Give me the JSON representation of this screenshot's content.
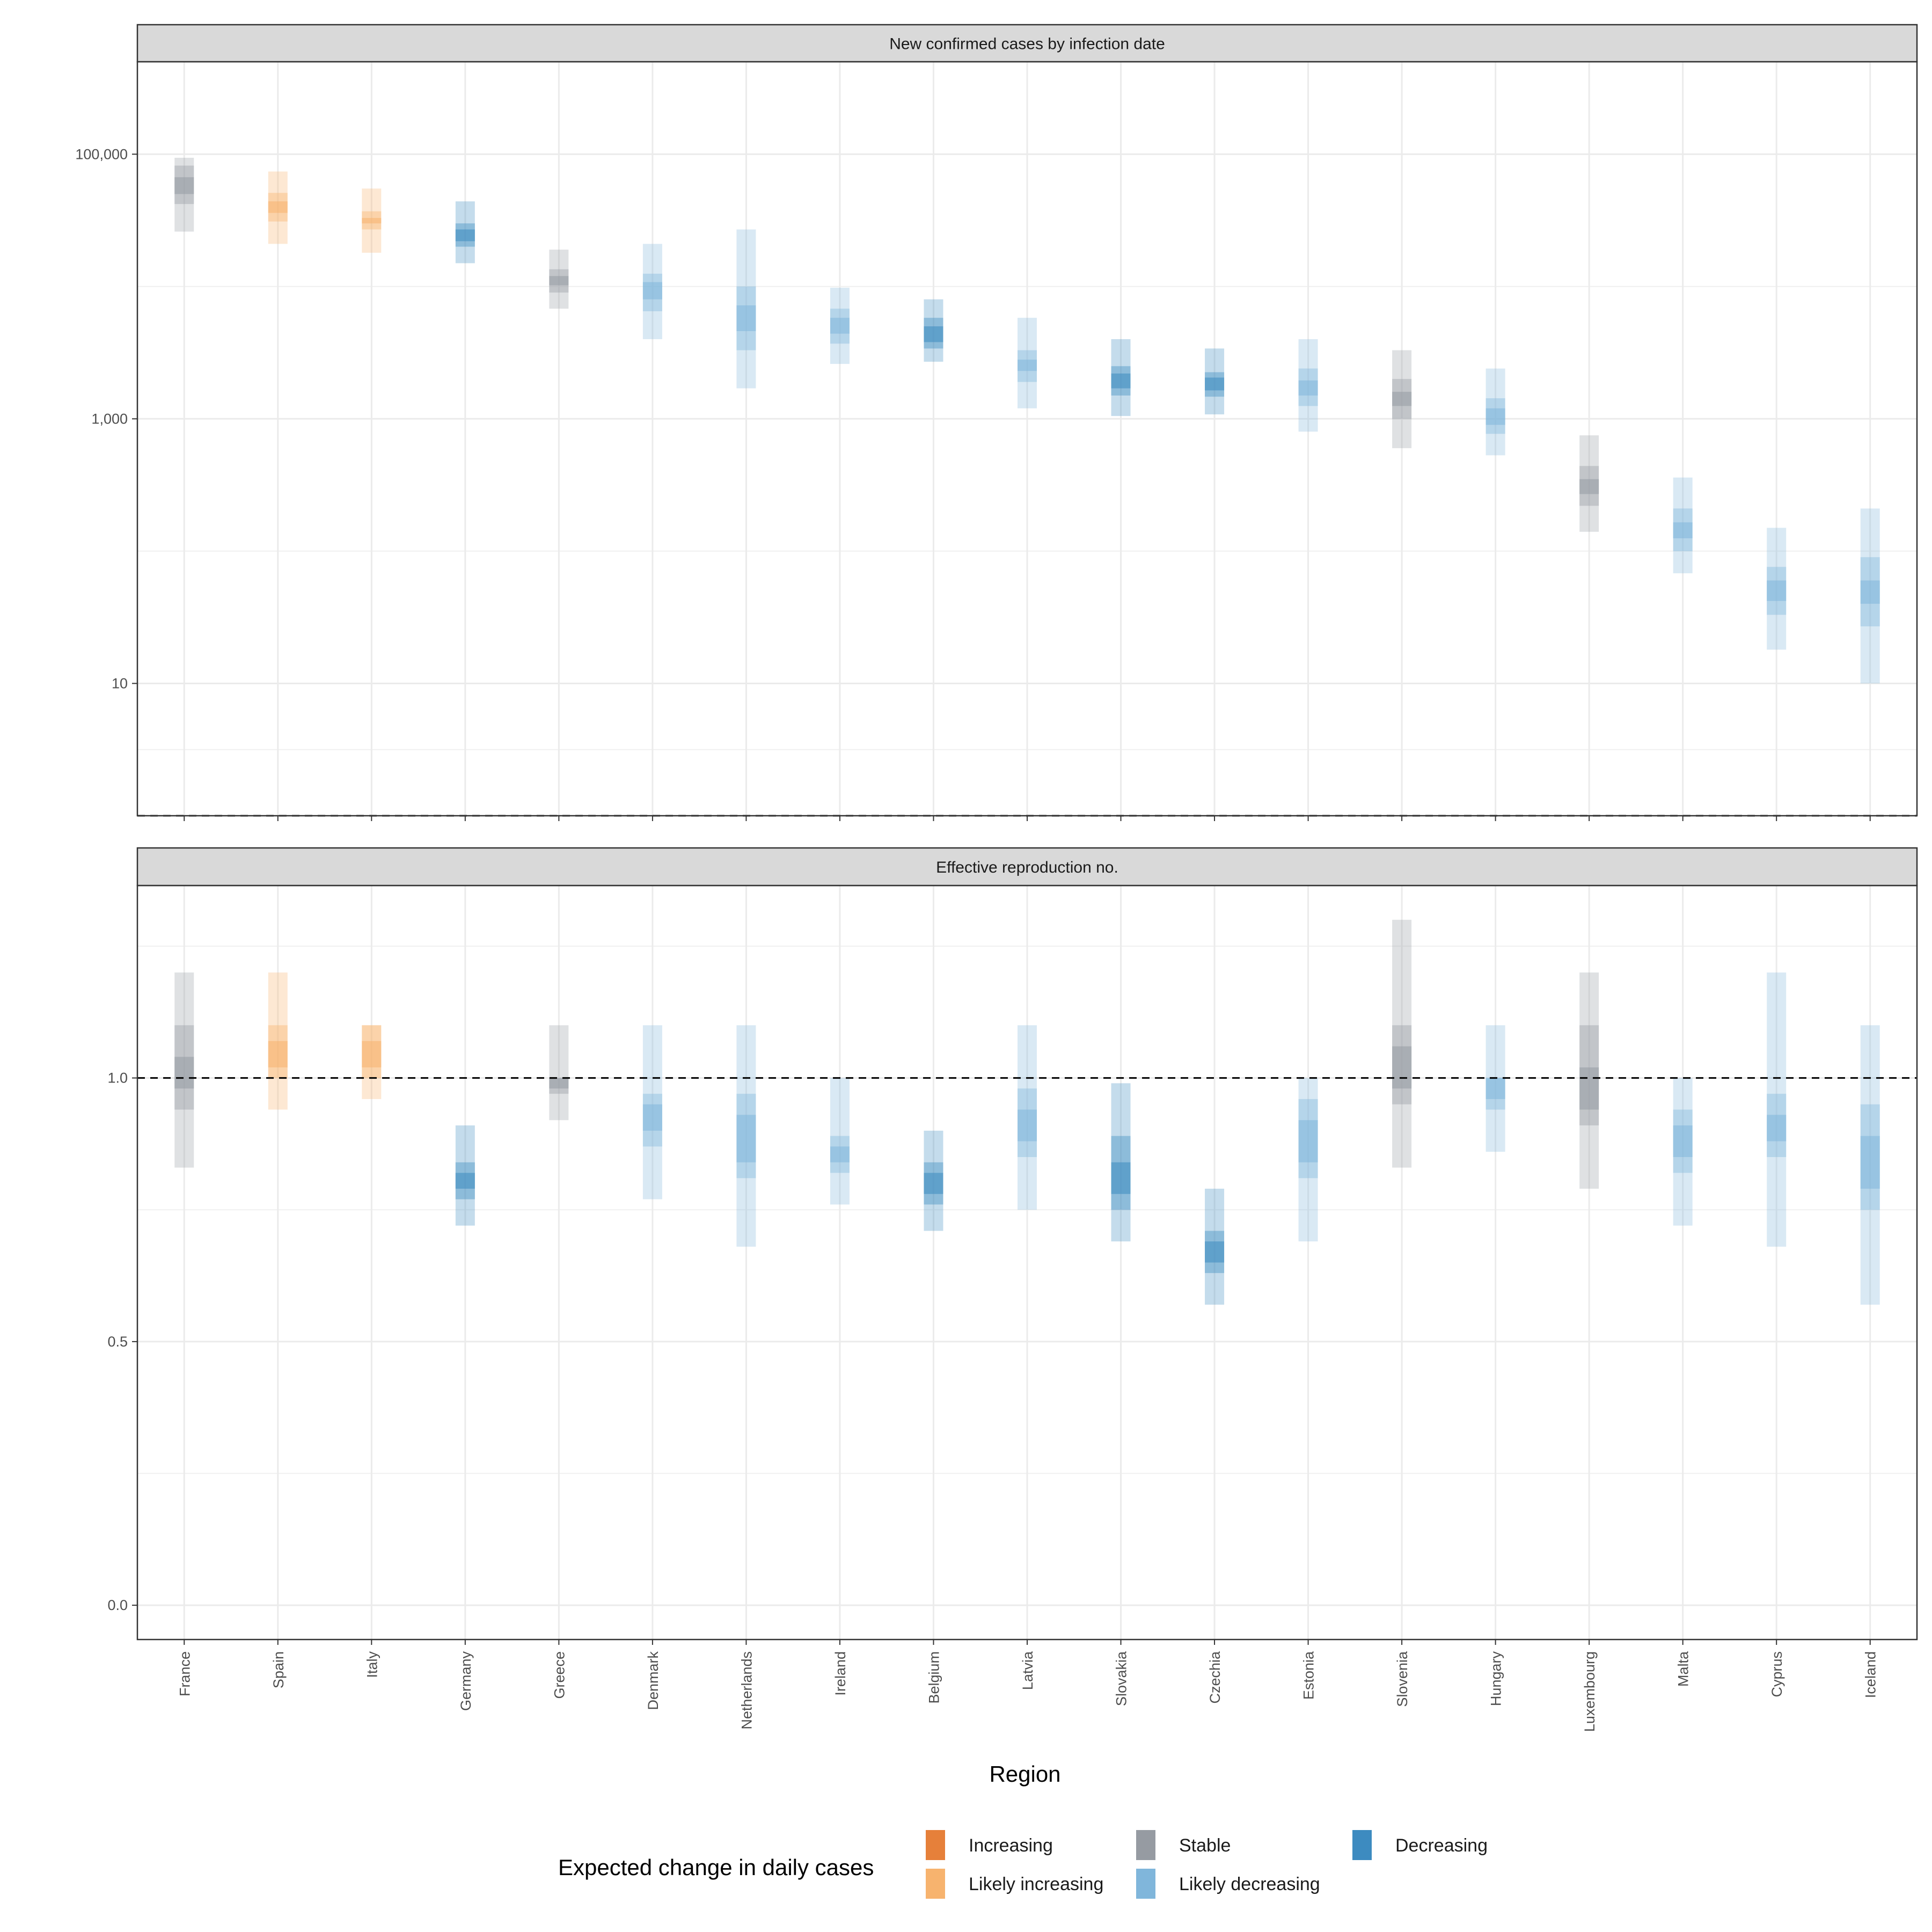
{
  "chart_data": [
    {
      "type": "interval",
      "title": "New confirmed cases by infection date",
      "y_scale": "log10",
      "ylim": [
        1,
        500000
      ],
      "y_ticks": [
        10,
        1000,
        100000
      ],
      "y_tick_labels": [
        "10",
        "1,000",
        "100,000"
      ],
      "reference_line": 1,
      "categories": [
        "France",
        "Spain",
        "Italy",
        "Germany",
        "Greece",
        "Denmark",
        "Netherlands",
        "Ireland",
        "Belgium",
        "Latvia",
        "Slovakia",
        "Czechia",
        "Estonia",
        "Slovenia",
        "Hungary",
        "Luxembourg",
        "Malta",
        "Cyprus",
        "Iceland"
      ],
      "category": [
        "Stable",
        "Likely increasing",
        "Likely increasing",
        "Decreasing",
        "Stable",
        "Likely decreasing",
        "Likely decreasing",
        "Likely decreasing",
        "Decreasing",
        "Likely decreasing",
        "Decreasing",
        "Decreasing",
        "Likely decreasing",
        "Stable",
        "Likely decreasing",
        "Stable",
        "Likely decreasing",
        "Likely decreasing",
        "Likely decreasing"
      ],
      "intervals_90": [
        [
          26000,
          94000
        ],
        [
          21000,
          74000
        ],
        [
          18000,
          55000
        ],
        [
          15000,
          44000
        ],
        [
          6800,
          19000
        ],
        [
          4000,
          21000
        ],
        [
          1700,
          27000
        ],
        [
          2600,
          9800
        ],
        [
          2700,
          8000
        ],
        [
          1200,
          5800
        ],
        [
          1050,
          4000
        ],
        [
          1080,
          3400
        ],
        [
          800,
          4000
        ],
        [
          600,
          3300
        ],
        [
          530,
          2400
        ],
        [
          140,
          750
        ],
        [
          68,
          360
        ],
        [
          18,
          150
        ],
        [
          10,
          210
        ]
      ],
      "intervals_50": [
        [
          42000,
          82000
        ],
        [
          31000,
          51000
        ],
        [
          27000,
          37000
        ],
        [
          20000,
          30000
        ],
        [
          9000,
          13500
        ],
        [
          6500,
          12500
        ],
        [
          3300,
          10000
        ],
        [
          3700,
          6800
        ],
        [
          3400,
          5800
        ],
        [
          1900,
          3300
        ],
        [
          1500,
          2500
        ],
        [
          1470,
          2250
        ],
        [
          1250,
          2400
        ],
        [
          1000,
          2000
        ],
        [
          770,
          1430
        ],
        [
          220,
          440
        ],
        [
          100,
          210
        ],
        [
          33,
          76
        ],
        [
          27,
          90
        ]
      ],
      "intervals_20": [
        [
          50000,
          67000
        ],
        [
          36000,
          44000
        ],
        [
          30000,
          33000
        ],
        [
          22000,
          27000
        ],
        [
          10200,
          12000
        ],
        [
          8000,
          10800
        ],
        [
          4600,
          7200
        ],
        [
          4400,
          5800
        ],
        [
          3800,
          5000
        ],
        [
          2300,
          2800
        ],
        [
          1700,
          2200
        ],
        [
          1640,
          2050
        ],
        [
          1500,
          1950
        ],
        [
          1250,
          1600
        ],
        [
          900,
          1200
        ],
        [
          270,
          350
        ],
        [
          125,
          165
        ],
        [
          42,
          60
        ],
        [
          40,
          60
        ]
      ]
    },
    {
      "type": "interval",
      "title": "Effective reproduction no.",
      "y_scale": "linear",
      "ylim": [
        -0.065,
        1.365
      ],
      "y_ticks": [
        0.0,
        0.5,
        1.0
      ],
      "y_tick_labels": [
        "0.0",
        "0.5",
        "1.0"
      ],
      "reference_line": 1.0,
      "categories": [
        "France",
        "Spain",
        "Italy",
        "Germany",
        "Greece",
        "Denmark",
        "Netherlands",
        "Ireland",
        "Belgium",
        "Latvia",
        "Slovakia",
        "Czechia",
        "Estonia",
        "Slovenia",
        "Hungary",
        "Luxembourg",
        "Malta",
        "Cyprus",
        "Iceland"
      ],
      "category": [
        "Stable",
        "Likely increasing",
        "Likely increasing",
        "Decreasing",
        "Stable",
        "Likely decreasing",
        "Likely decreasing",
        "Likely decreasing",
        "Decreasing",
        "Likely decreasing",
        "Decreasing",
        "Decreasing",
        "Likely decreasing",
        "Stable",
        "Likely decreasing",
        "Stable",
        "Likely decreasing",
        "Likely decreasing",
        "Likely decreasing"
      ],
      "intervals_90": [
        [
          0.83,
          1.2
        ],
        [
          0.94,
          1.2
        ],
        [
          0.96,
          1.1
        ],
        [
          0.72,
          0.91
        ],
        [
          0.92,
          1.1
        ],
        [
          0.77,
          1.1
        ],
        [
          0.68,
          1.1
        ],
        [
          0.76,
          1.0
        ],
        [
          0.71,
          0.9
        ],
        [
          0.75,
          1.1
        ],
        [
          0.69,
          0.99
        ],
        [
          0.57,
          0.79
        ],
        [
          0.69,
          1.0
        ],
        [
          0.83,
          1.3
        ],
        [
          0.86,
          1.1
        ],
        [
          0.79,
          1.2
        ],
        [
          0.72,
          1.0
        ],
        [
          0.68,
          1.2
        ],
        [
          0.57,
          1.1
        ]
      ],
      "intervals_50": [
        [
          0.94,
          1.1
        ],
        [
          1.0,
          1.1
        ],
        [
          1.0,
          1.1
        ],
        [
          0.77,
          0.84
        ],
        [
          0.97,
          1.0
        ],
        [
          0.87,
          0.97
        ],
        [
          0.81,
          0.97
        ],
        [
          0.82,
          0.89
        ],
        [
          0.76,
          0.84
        ],
        [
          0.85,
          0.98
        ],
        [
          0.75,
          0.89
        ],
        [
          0.63,
          0.71
        ],
        [
          0.81,
          0.96
        ],
        [
          0.95,
          1.1
        ],
        [
          0.94,
          1.0
        ],
        [
          0.91,
          1.1
        ],
        [
          0.82,
          0.94
        ],
        [
          0.85,
          0.97
        ],
        [
          0.75,
          0.95
        ]
      ],
      "intervals_20": [
        [
          0.98,
          1.04
        ],
        [
          1.02,
          1.07
        ],
        [
          1.02,
          1.07
        ],
        [
          0.79,
          0.82
        ],
        [
          0.98,
          1.0
        ],
        [
          0.9,
          0.95
        ],
        [
          0.84,
          0.93
        ],
        [
          0.84,
          0.87
        ],
        [
          0.78,
          0.82
        ],
        [
          0.88,
          0.94
        ],
        [
          0.78,
          0.84
        ],
        [
          0.65,
          0.69
        ],
        [
          0.84,
          0.92
        ],
        [
          0.98,
          1.06
        ],
        [
          0.96,
          1.0
        ],
        [
          0.94,
          1.02
        ],
        [
          0.85,
          0.91
        ],
        [
          0.88,
          0.93
        ],
        [
          0.79,
          0.89
        ]
      ]
    }
  ],
  "xlabel": "Region",
  "legend": {
    "title": "Expected change in daily cases",
    "position": "bottom",
    "items": [
      {
        "label": "Increasing",
        "color": "#E6803A"
      },
      {
        "label": "Likely increasing",
        "color": "#F7B36E"
      },
      {
        "label": "Stable",
        "color": "#969BA2"
      },
      {
        "label": "Likely decreasing",
        "color": "#80B6DB"
      },
      {
        "label": "Decreasing",
        "color": "#3D8BC0"
      }
    ]
  },
  "colors": {
    "Increasing": "#E6803A",
    "Likely increasing": "#F7B36E",
    "Stable": "#969BA2",
    "Likely decreasing": "#80B6DB",
    "Decreasing": "#3D8BC0"
  }
}
